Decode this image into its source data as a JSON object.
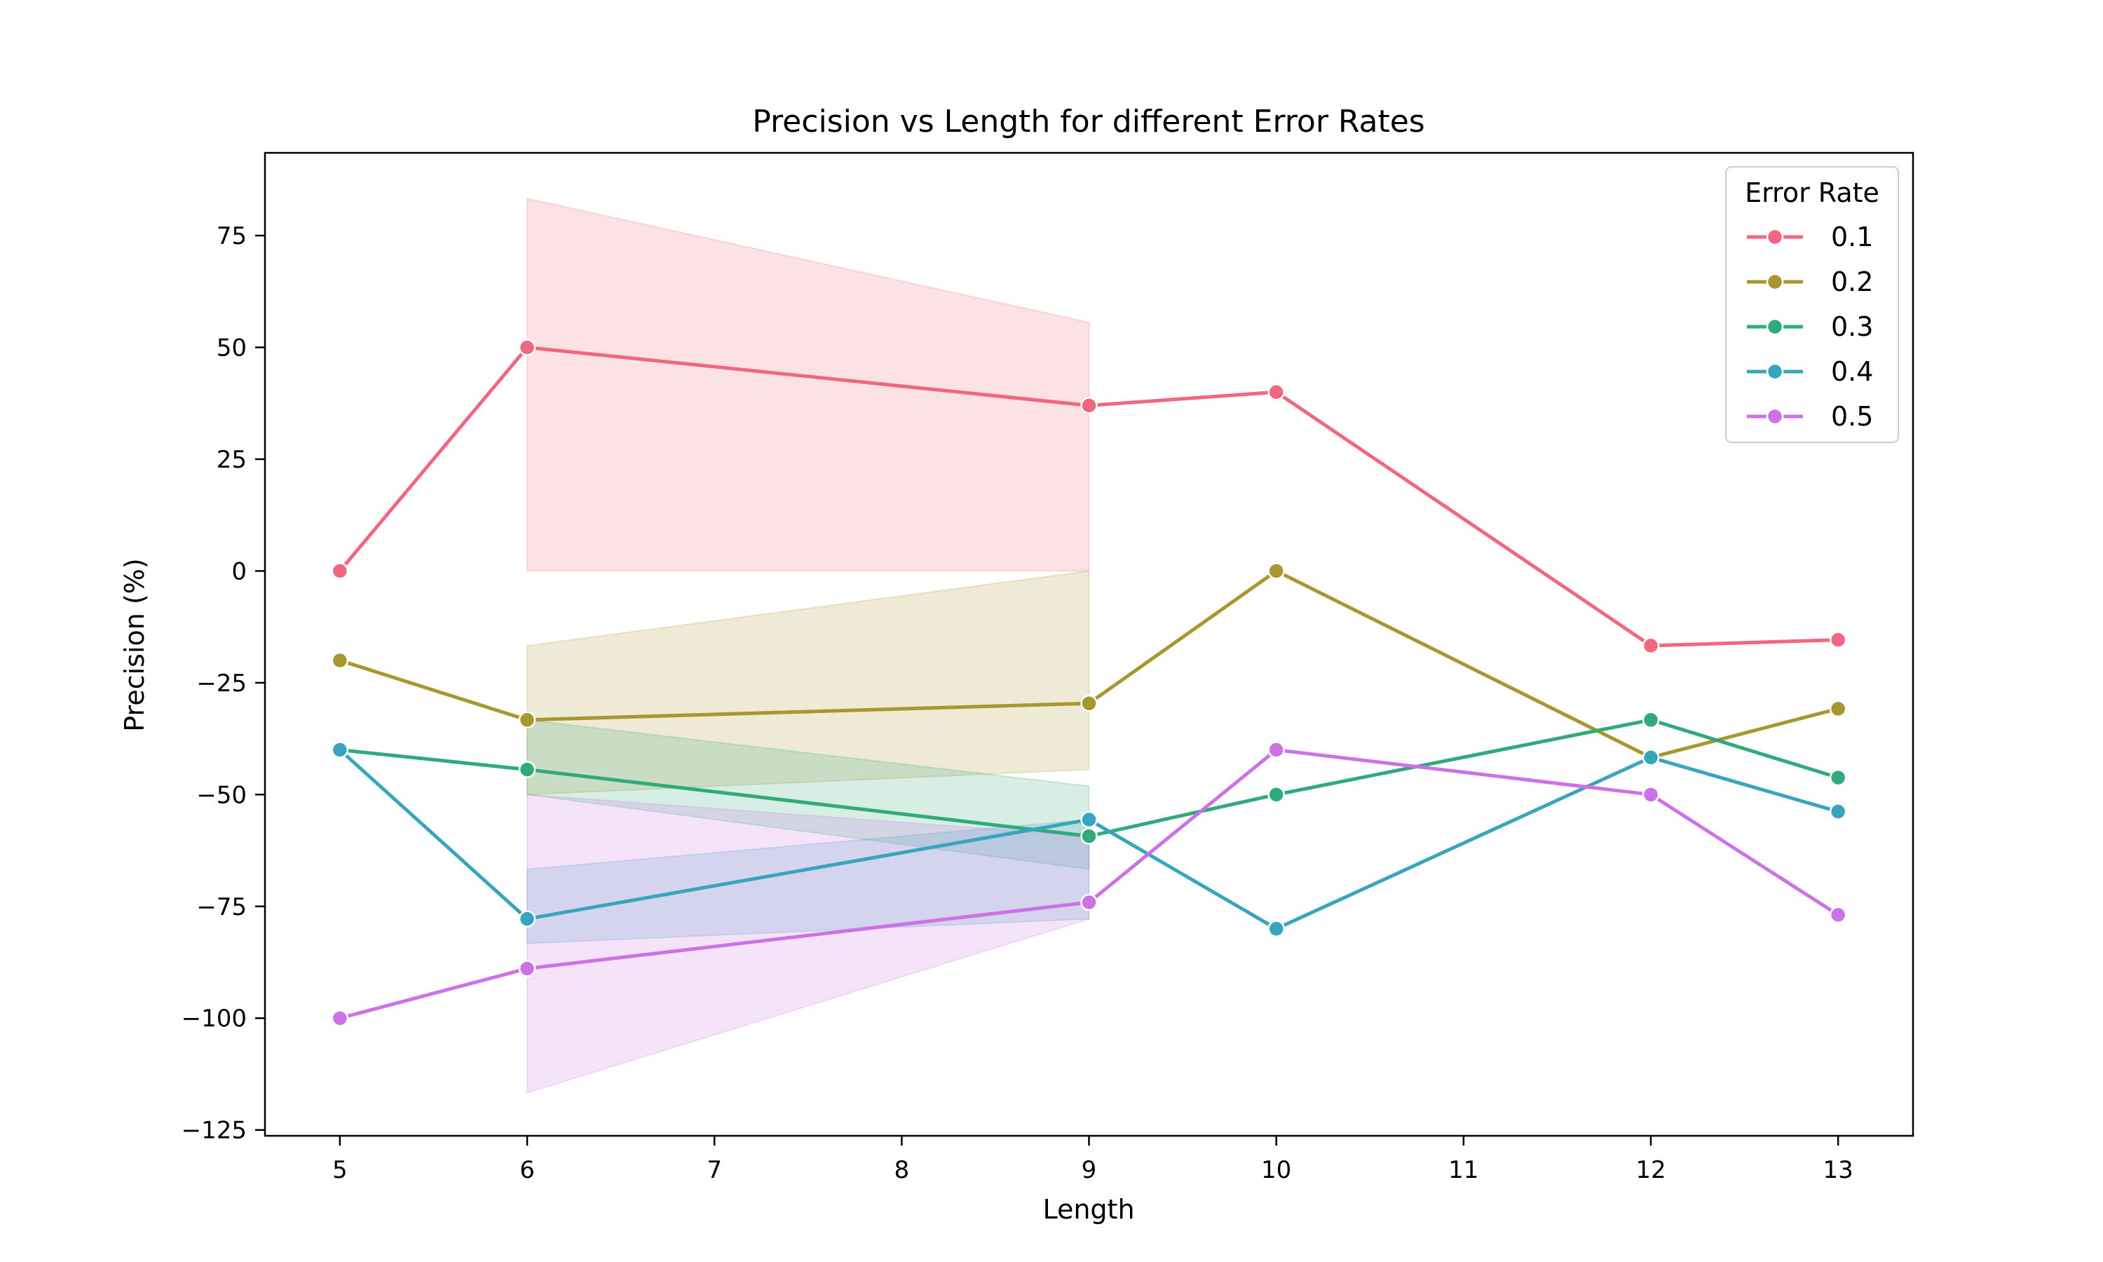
{
  "chart_data": {
    "type": "line",
    "title": "Precision vs Length for different Error Rates",
    "xlabel": "Length",
    "ylabel": "Precision (%)",
    "xlim": [
      4.6,
      13.4
    ],
    "ylim": [
      -126.3,
      93.5
    ],
    "xticks": [
      5,
      6,
      7,
      8,
      9,
      10,
      11,
      12,
      13
    ],
    "yticks": [
      -125,
      -100,
      -75,
      -50,
      -25,
      0,
      25,
      50,
      75
    ],
    "grid": false,
    "legend": {
      "title": "Error Rate",
      "position": "top-right"
    },
    "series": [
      {
        "name": "0.1",
        "color": "#f0677f",
        "points": [
          [
            5,
            0
          ],
          [
            6,
            50
          ],
          [
            9,
            37
          ],
          [
            10,
            40
          ],
          [
            12,
            -16.7
          ],
          [
            13,
            -15.4
          ]
        ],
        "ci": [
          {
            "x": 6,
            "lo": 0,
            "hi": 83.3
          },
          {
            "x": 9,
            "lo": 0,
            "hi": 55.6
          }
        ]
      },
      {
        "name": "0.2",
        "color": "#a8972e",
        "points": [
          [
            5,
            -20
          ],
          [
            6,
            -33.3
          ],
          [
            9,
            -29.6
          ],
          [
            10,
            0
          ],
          [
            12,
            -41.7
          ],
          [
            13,
            -30.8
          ]
        ],
        "ci": [
          {
            "x": 6,
            "lo": -50,
            "hi": -16.7
          },
          {
            "x": 9,
            "lo": -44.4,
            "hi": 0
          }
        ]
      },
      {
        "name": "0.3",
        "color": "#31aa79",
        "points": [
          [
            5,
            -40
          ],
          [
            6,
            -44.4
          ],
          [
            9,
            -59.3
          ],
          [
            10,
            -50
          ],
          [
            12,
            -33.3
          ],
          [
            13,
            -46.2
          ]
        ],
        "ci": [
          {
            "x": 6,
            "lo": -50,
            "hi": -33.3
          },
          {
            "x": 9,
            "lo": -66.7,
            "hi": -48.1
          }
        ]
      },
      {
        "name": "0.4",
        "color": "#38a5bf",
        "points": [
          [
            5,
            -40
          ],
          [
            6,
            -77.8
          ],
          [
            9,
            -55.6
          ],
          [
            10,
            -80
          ],
          [
            12,
            -41.7
          ],
          [
            13,
            -53.8
          ]
        ],
        "ci": [
          {
            "x": 6,
            "lo": -83.3,
            "hi": -66.7
          },
          {
            "x": 9,
            "lo": -77.8,
            "hi": -55.6
          }
        ]
      },
      {
        "name": "0.5",
        "color": "#cc72e6",
        "points": [
          [
            5,
            -100
          ],
          [
            6,
            -88.9
          ],
          [
            9,
            -74.1
          ],
          [
            10,
            -40
          ],
          [
            12,
            -50
          ],
          [
            13,
            -76.9
          ]
        ],
        "ci": [
          {
            "x": 6,
            "lo": -116.7,
            "hi": -50
          },
          {
            "x": 9,
            "lo": -77.8,
            "hi": -59.3
          }
        ]
      }
    ]
  }
}
